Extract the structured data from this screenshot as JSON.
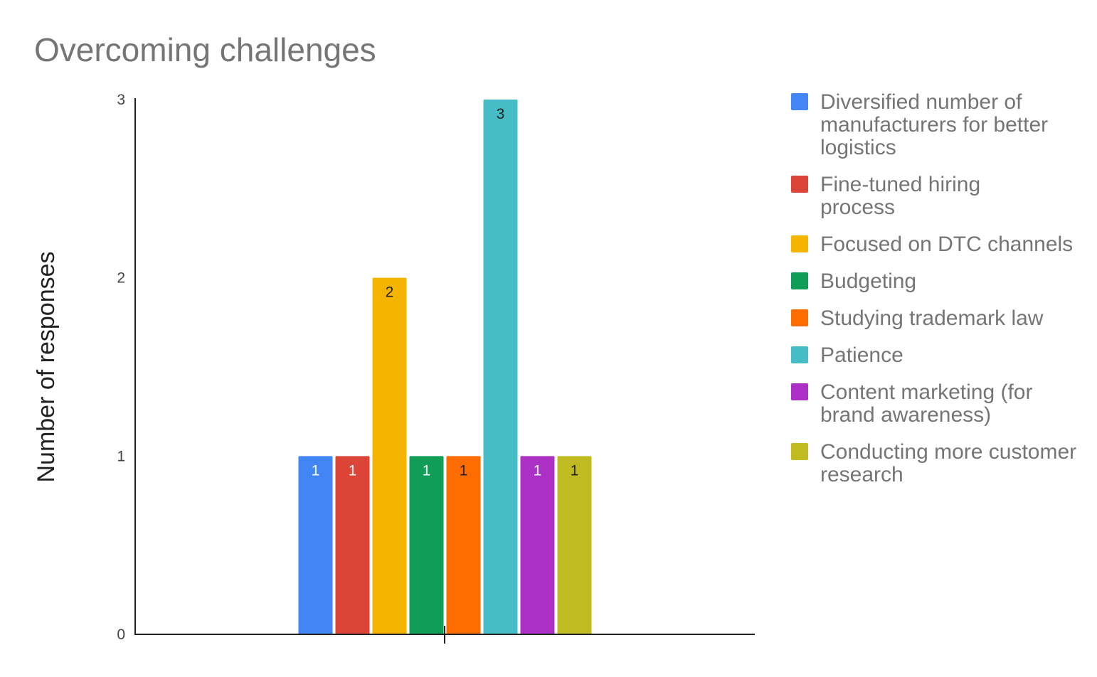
{
  "chart_data": {
    "type": "bar",
    "title": "Overcoming challenges",
    "xlabel": "",
    "ylabel": "Number of responses",
    "ylim": [
      0,
      3
    ],
    "yticks": [
      0,
      1,
      2,
      3
    ],
    "grid": false,
    "legend_position": "right",
    "series": [
      {
        "name": "Diversified number of manufacturers for better logistics",
        "value": 1,
        "color": "#4285F4",
        "label_color": "#ffffff"
      },
      {
        "name": "Fine-tuned hiring process",
        "value": 1,
        "color": "#DB4437",
        "label_color": "#ffffff"
      },
      {
        "name": "Focused on DTC channels",
        "value": 2,
        "color": "#F4B400",
        "label_color": "#222222"
      },
      {
        "name": "Budgeting",
        "value": 1,
        "color": "#0F9D58",
        "label_color": "#ffffff"
      },
      {
        "name": "Studying trademark law",
        "value": 1,
        "color": "#FF6D00",
        "label_color": "#222222"
      },
      {
        "name": "Patience",
        "value": 3,
        "color": "#46BDC6",
        "label_color": "#222222"
      },
      {
        "name": "Content marketing (for brand awareness)",
        "value": 1,
        "color": "#AB30C4",
        "label_color": "#ffffff"
      },
      {
        "name": "Conducting more customer research",
        "value": 1,
        "color": "#C0BB20",
        "label_color": "#222222"
      }
    ]
  }
}
